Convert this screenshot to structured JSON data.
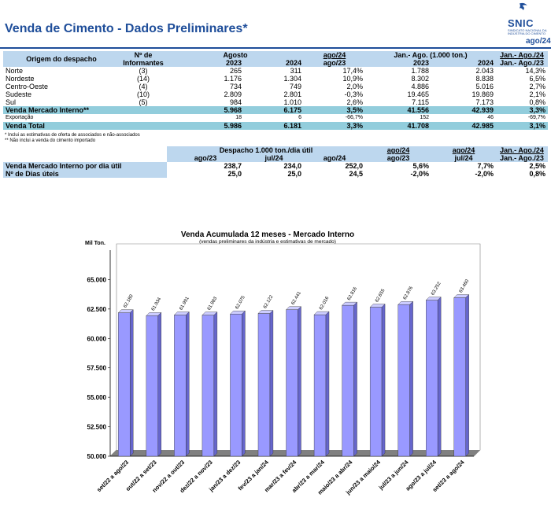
{
  "header": {
    "title": "Venda de Cimento - Dados Preliminares*",
    "logo_text": "SNIC",
    "logo_sub": "SINDICATO NACIONAL DA INDÚSTRIA DO CIMENTO",
    "period": "ago/24"
  },
  "table1": {
    "h_origin": "Origem do despacho",
    "h_num": "Nº de",
    "h_num2": "Informantes",
    "h_agosto": "Agosto",
    "h_2023": "2023",
    "h_2024": "2024",
    "h_var1a": "ago/24",
    "h_var1b": "ago/23",
    "h_jan": "Jan.- Ago. (1.000 ton.)",
    "h_j2023": "2023",
    "h_j2024": "2024",
    "h_var2a": "Jan.- Ago./24",
    "h_var2b": "Jan.- Ago./23",
    "rows": [
      {
        "name": "Norte",
        "inf": "(3)",
        "a23": "265",
        "a24": "311",
        "var": "17,4%",
        "j23": "1.788",
        "j24": "2.043",
        "jvar": "14,3%"
      },
      {
        "name": "Nordeste",
        "inf": "(14)",
        "a23": "1.176",
        "a24": "1.304",
        "var": "10,9%",
        "j23": "8.302",
        "j24": "8.838",
        "jvar": "6,5%"
      },
      {
        "name": "Centro-Oeste",
        "inf": "(4)",
        "a23": "734",
        "a24": "749",
        "var": "2,0%",
        "j23": "4.886",
        "j24": "5.016",
        "jvar": "2,7%"
      },
      {
        "name": "Sudeste",
        "inf": "(10)",
        "a23": "2.809",
        "a24": "2.801",
        "var": "-0,3%",
        "j23": "19.465",
        "j24": "19.869",
        "jvar": "2,1%"
      },
      {
        "name": "Sul",
        "inf": "(5)",
        "a23": "984",
        "a24": "1.010",
        "var": "2,6%",
        "j23": "7.115",
        "j24": "7.173",
        "jvar": "0,8%"
      }
    ],
    "mi": {
      "name": "Venda Mercado Interno**",
      "a23": "5.968",
      "a24": "6.175",
      "var": "3,5%",
      "j23": "41.556",
      "j24": "42.939",
      "jvar": "3,3%"
    },
    "exp": {
      "name": "Exportação",
      "a23": "18",
      "a24": "6",
      "var": "-66,7%",
      "j23": "152",
      "j24": "46",
      "jvar": "-69,7%"
    },
    "tot": {
      "name": "Venda Total",
      "a23": "5.986",
      "a24": "6.181",
      "var": "3,3%",
      "j23": "41.708",
      "j24": "42.985",
      "jvar": "3,1%"
    },
    "note1": "* Inclui as estimativas de oferta de associados e não-associados",
    "note2": "** Não inclui a venda do cimento importado"
  },
  "table2": {
    "h_desp": "Despacho 1.000 ton./dia útil",
    "h_c1": "ago/23",
    "h_c2": "jul/24",
    "h_c3": "ago/24",
    "h_v1a": "ago/24",
    "h_v1b": "ago/23",
    "h_v2a": "ago/24",
    "h_v2b": "jul/24",
    "h_v3a": "Jan.- Ago./24",
    "h_v3b": "Jan.- Ago./23",
    "r1": {
      "name": "Venda Mercado Interno por dia útil",
      "c1": "238,7",
      "c2": "234,0",
      "c3": "252,0",
      "v1": "5,6%",
      "v2": "7,7%",
      "v3": "2,5%"
    },
    "r2": {
      "name": "Nº de Dias úteis",
      "c1": "25,0",
      "c2": "25,0",
      "c3": "24,5",
      "v1": "-2,0%",
      "v2": "-2,0%",
      "v3": "0,8%"
    }
  },
  "chart_data": {
    "type": "bar",
    "title": "Venda Acumulada 12 meses -  Mercado Interno",
    "subtitle": "(vendas preliminares da indústria e estimativas de mercado)",
    "ylabel": "Mil Ton.",
    "ylim": [
      50000,
      67500
    ],
    "yticks": [
      "50.000",
      "52.500",
      "55.000",
      "57.500",
      "60.000",
      "62.500",
      "65.000"
    ],
    "categories": [
      "set/22 a ago/23",
      "out/22 a set/23",
      "nov/22 a out/23",
      "dez/22 a nov/23",
      "jan/23 a dez/23",
      "fev/23 a jan/24",
      "mar/23 a fev/24",
      "abr/23 a mar/24",
      "maio/23 a abr/24",
      "jun/23 a maio/24",
      "jul/23 a jun/24",
      "ago/23 a jul/24",
      "set/23 a ago/24"
    ],
    "values": [
      62180,
      61934,
      61991,
      61983,
      62075,
      62122,
      62441,
      62016,
      62816,
      62655,
      62876,
      63252,
      63460
    ],
    "labels": [
      "62.180",
      "61.934",
      "61.991",
      "61.983",
      "62.075",
      "62.122",
      "62.441",
      "62.016",
      "62.816",
      "62.655",
      "62.876",
      "63.252",
      "63.460"
    ],
    "bar_color": "#9999ff"
  }
}
